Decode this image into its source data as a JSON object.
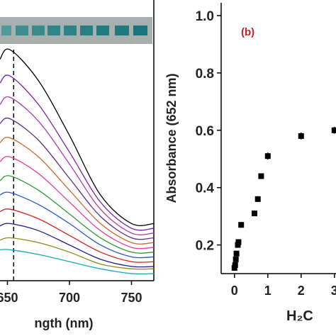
{
  "chart_data": [
    {
      "type": "line",
      "x_label": "ngth (nm)",
      "x": [
        644,
        652,
        675,
        700,
        725,
        750,
        768
      ],
      "xlim": [
        644,
        768
      ],
      "xticks": [
        650,
        700,
        750
      ],
      "ylim": [
        0,
        1
      ],
      "vline_x": 655,
      "series": [
        {
          "color": "#000000",
          "values": [
            0.93,
            0.97,
            0.84,
            0.61,
            0.36,
            0.24,
            0.24
          ]
        },
        {
          "color": "#7a1fa2",
          "values": [
            0.83,
            0.86,
            0.74,
            0.54,
            0.33,
            0.22,
            0.22
          ]
        },
        {
          "color": "#b03aa8",
          "values": [
            0.74,
            0.77,
            0.67,
            0.49,
            0.3,
            0.2,
            0.2
          ]
        },
        {
          "color": "#5b2a86",
          "values": [
            0.66,
            0.68,
            0.59,
            0.43,
            0.27,
            0.18,
            0.18
          ]
        },
        {
          "color": "#c8662b",
          "values": [
            0.58,
            0.6,
            0.52,
            0.38,
            0.24,
            0.16,
            0.16
          ]
        },
        {
          "color": "#e0409a",
          "values": [
            0.5,
            0.52,
            0.45,
            0.33,
            0.21,
            0.14,
            0.14
          ]
        },
        {
          "color": "#2e9a2e",
          "values": [
            0.42,
            0.44,
            0.38,
            0.28,
            0.18,
            0.12,
            0.12
          ]
        },
        {
          "color": "#2456c8",
          "values": [
            0.36,
            0.37,
            0.32,
            0.24,
            0.15,
            0.1,
            0.1
          ]
        },
        {
          "color": "#d42020",
          "values": [
            0.29,
            0.3,
            0.26,
            0.19,
            0.12,
            0.08,
            0.08
          ]
        },
        {
          "color": "#1a1a8c",
          "values": [
            0.23,
            0.24,
            0.21,
            0.15,
            0.09,
            0.06,
            0.06
          ]
        },
        {
          "color": "#8a8a1a",
          "values": [
            0.17,
            0.18,
            0.16,
            0.12,
            0.07,
            0.05,
            0.05
          ]
        },
        {
          "color": "#18a8b8",
          "values": [
            0.13,
            0.13,
            0.11,
            0.08,
            0.05,
            0.03,
            0.03
          ]
        }
      ]
    },
    {
      "type": "scatter",
      "panel_label": "(b)",
      "y_label": "Absorbance (652 nm)",
      "x_label": "H₂C",
      "x": [
        0,
        0.02,
        0.04,
        0.06,
        0.1,
        0.12,
        0.2,
        0.6,
        0.7,
        0.8,
        1,
        2,
        3
      ],
      "values": [
        0.12,
        0.13,
        0.15,
        0.17,
        0.2,
        0.21,
        0.27,
        0.31,
        0.36,
        0.44,
        0.51,
        0.58,
        0.6
      ],
      "errors": [
        0.01,
        0.01,
        0.01,
        0.01,
        0.01,
        0.01,
        0.01,
        0.01,
        0.01,
        0.01,
        0.012,
        0.012,
        0.012
      ],
      "color": "#000000",
      "xlim": [
        -0.4,
        3.4
      ],
      "xticks": [
        0,
        1,
        2,
        3
      ],
      "ylim": [
        0.1,
        1
      ],
      "yticks": [
        0.2,
        0.4,
        0.6,
        0.8,
        {
          "value": 1,
          "label": "1.0"
        }
      ]
    }
  ]
}
